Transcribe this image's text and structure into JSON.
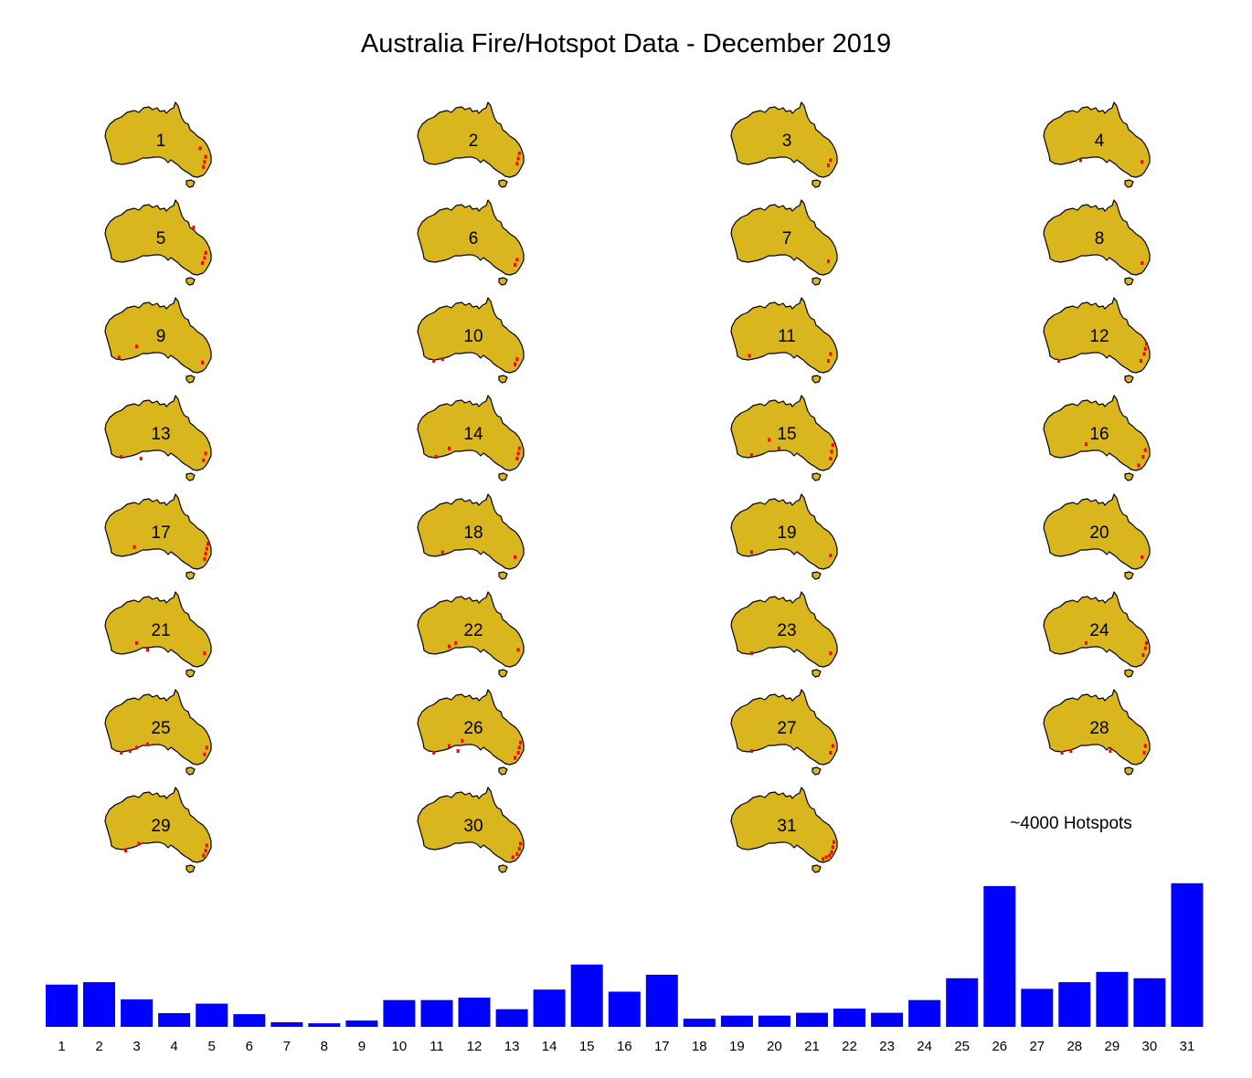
{
  "title": "Australia Fire/Hotspot Data - December 2019",
  "note": "~4000 Hotspots",
  "colors": {
    "land": "#D9B51E",
    "outline": "#000000",
    "hotspot": "#FF0000",
    "bar": "#0000FF"
  },
  "chart_data": [
    {
      "type": "map-small-multiples",
      "panels": [
        {
          "day": "1",
          "hotspots": [
            [
              0.93,
              0.62
            ],
            [
              0.92,
              0.68
            ],
            [
              0.91,
              0.74
            ],
            [
              0.88,
              0.52
            ]
          ]
        },
        {
          "day": "2",
          "hotspots": [
            [
              0.94,
              0.58
            ],
            [
              0.93,
              0.64
            ],
            [
              0.92,
              0.7
            ]
          ]
        },
        {
          "day": "3",
          "hotspots": [
            [
              0.92,
              0.66
            ],
            [
              0.9,
              0.72
            ]
          ]
        },
        {
          "day": "4",
          "hotspots": [
            [
              0.91,
              0.68
            ],
            [
              0.35,
              0.66
            ]
          ]
        },
        {
          "day": "5",
          "hotspots": [
            [
              0.93,
              0.6
            ],
            [
              0.92,
              0.66
            ],
            [
              0.9,
              0.72
            ],
            [
              0.82,
              0.3
            ]
          ]
        },
        {
          "day": "6",
          "hotspots": [
            [
              0.92,
              0.68
            ],
            [
              0.9,
              0.74
            ]
          ]
        },
        {
          "day": "7",
          "hotspots": [
            [
              0.9,
              0.7
            ]
          ]
        },
        {
          "day": "8",
          "hotspots": [
            [
              0.91,
              0.72
            ]
          ]
        },
        {
          "day": "9",
          "hotspots": [
            [
              0.9,
              0.74
            ],
            [
              0.14,
              0.68
            ],
            [
              0.3,
              0.55
            ]
          ]
        },
        {
          "day": "10",
          "hotspots": [
            [
              0.92,
              0.7
            ],
            [
              0.9,
              0.76
            ],
            [
              0.16,
              0.72
            ],
            [
              0.24,
              0.7
            ]
          ]
        },
        {
          "day": "11",
          "hotspots": [
            [
              0.92,
              0.64
            ],
            [
              0.9,
              0.72
            ],
            [
              0.18,
              0.66
            ]
          ]
        },
        {
          "day": "12",
          "hotspots": [
            [
              0.95,
              0.52
            ],
            [
              0.94,
              0.58
            ],
            [
              0.93,
              0.64
            ],
            [
              0.9,
              0.72
            ],
            [
              0.15,
              0.72
            ]
          ]
        },
        {
          "day": "13",
          "hotspots": [
            [
              0.93,
              0.66
            ],
            [
              0.91,
              0.74
            ],
            [
              0.16,
              0.7
            ],
            [
              0.34,
              0.72
            ]
          ]
        },
        {
          "day": "14",
          "hotspots": [
            [
              0.94,
              0.6
            ],
            [
              0.93,
              0.66
            ],
            [
              0.92,
              0.72
            ],
            [
              0.18,
              0.7
            ],
            [
              0.3,
              0.6
            ]
          ]
        },
        {
          "day": "15",
          "hotspots": [
            [
              0.94,
              0.56
            ],
            [
              0.93,
              0.64
            ],
            [
              0.92,
              0.72
            ],
            [
              0.2,
              0.68
            ],
            [
              0.36,
              0.5
            ],
            [
              0.45,
              0.6
            ]
          ]
        },
        {
          "day": "16",
          "hotspots": [
            [
              0.94,
              0.62
            ],
            [
              0.92,
              0.7
            ],
            [
              0.88,
              0.8
            ],
            [
              0.4,
              0.55
            ]
          ]
        },
        {
          "day": "17",
          "hotspots": [
            [
              0.95,
              0.56
            ],
            [
              0.94,
              0.62
            ],
            [
              0.93,
              0.68
            ],
            [
              0.92,
              0.74
            ],
            [
              0.28,
              0.6
            ]
          ]
        },
        {
          "day": "18",
          "hotspots": [
            [
              0.9,
              0.72
            ],
            [
              0.24,
              0.66
            ]
          ]
        },
        {
          "day": "19",
          "hotspots": [
            [
              0.92,
              0.7
            ],
            [
              0.2,
              0.66
            ]
          ]
        },
        {
          "day": "20",
          "hotspots": [
            [
              0.91,
              0.72
            ]
          ]
        },
        {
          "day": "21",
          "hotspots": [
            [
              0.92,
              0.7
            ],
            [
              0.3,
              0.58
            ],
            [
              0.4,
              0.66
            ]
          ]
        },
        {
          "day": "22",
          "hotspots": [
            [
              0.93,
              0.66
            ],
            [
              0.36,
              0.58
            ],
            [
              0.3,
              0.62
            ]
          ]
        },
        {
          "day": "23",
          "hotspots": [
            [
              0.92,
              0.7
            ],
            [
              0.2,
              0.7
            ]
          ]
        },
        {
          "day": "24",
          "hotspots": [
            [
              0.95,
              0.58
            ],
            [
              0.94,
              0.64
            ],
            [
              0.92,
              0.72
            ],
            [
              0.4,
              0.58
            ]
          ]
        },
        {
          "day": "25",
          "hotspots": [
            [
              0.94,
              0.66
            ],
            [
              0.92,
              0.74
            ],
            [
              0.16,
              0.72
            ],
            [
              0.24,
              0.7
            ],
            [
              0.4,
              0.62
            ],
            [
              0.3,
              0.66
            ]
          ]
        },
        {
          "day": "26",
          "hotspots": [
            [
              0.95,
              0.6
            ],
            [
              0.94,
              0.66
            ],
            [
              0.93,
              0.72
            ],
            [
              0.9,
              0.78
            ],
            [
              0.16,
              0.72
            ],
            [
              0.3,
              0.64
            ],
            [
              0.42,
              0.58
            ],
            [
              0.38,
              0.7
            ]
          ]
        },
        {
          "day": "27",
          "hotspots": [
            [
              0.94,
              0.64
            ],
            [
              0.92,
              0.72
            ],
            [
              0.2,
              0.7
            ]
          ]
        },
        {
          "day": "28",
          "hotspots": [
            [
              0.94,
              0.64
            ],
            [
              0.93,
              0.72
            ],
            [
              0.18,
              0.72
            ],
            [
              0.26,
              0.7
            ],
            [
              0.62,
              0.7
            ]
          ]
        },
        {
          "day": "29",
          "hotspots": [
            [
              0.94,
              0.66
            ],
            [
              0.93,
              0.72
            ],
            [
              0.91,
              0.78
            ],
            [
              0.2,
              0.72
            ],
            [
              0.32,
              0.64
            ]
          ]
        },
        {
          "day": "30",
          "hotspots": [
            [
              0.95,
              0.64
            ],
            [
              0.94,
              0.7
            ],
            [
              0.92,
              0.76
            ],
            [
              0.88,
              0.8
            ]
          ]
        },
        {
          "day": "31",
          "hotspots": [
            [
              0.95,
              0.62
            ],
            [
              0.94,
              0.68
            ],
            [
              0.93,
              0.74
            ],
            [
              0.91,
              0.78
            ],
            [
              0.88,
              0.8
            ],
            [
              0.85,
              0.82
            ]
          ]
        }
      ]
    },
    {
      "type": "bar",
      "categories": [
        "1",
        "2",
        "3",
        "4",
        "5",
        "6",
        "7",
        "8",
        "9",
        "10",
        "11",
        "12",
        "13",
        "14",
        "15",
        "16",
        "17",
        "18",
        "19",
        "20",
        "21",
        "22",
        "23",
        "24",
        "25",
        "26",
        "27",
        "28",
        "29",
        "30",
        "31"
      ],
      "values": [
        1200,
        1270,
        780,
        390,
        660,
        360,
        130,
        100,
        180,
        760,
        760,
        830,
        500,
        1060,
        1770,
        1000,
        1480,
        230,
        320,
        320,
        400,
        520,
        400,
        760,
        1380,
        4000,
        1080,
        1270,
        1560,
        1380,
        4080
      ],
      "ylim": [
        0,
        4100
      ],
      "xlabel": "",
      "ylabel": ""
    }
  ]
}
